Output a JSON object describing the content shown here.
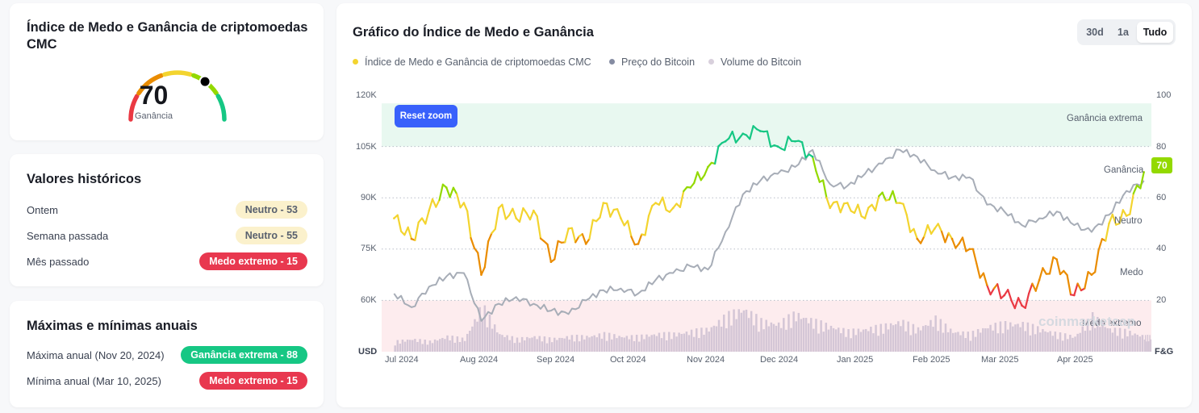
{
  "gauge": {
    "title": "Índice de Medo e Ganância de criptomoedas CMC",
    "value": "70",
    "value_num": 70,
    "label": "Ganância"
  },
  "history": {
    "title": "Valores históricos",
    "rows": [
      {
        "label": "Ontem",
        "badge": "Neutro - 53",
        "kind": "neutral"
      },
      {
        "label": "Semana passada",
        "badge": "Neutro - 55",
        "kind": "neutral"
      },
      {
        "label": "Mês passado",
        "badge": "Medo extremo - 15",
        "kind": "red"
      }
    ]
  },
  "annual": {
    "title": "Máximas e mínimas anuais",
    "rows": [
      {
        "label": "Máxima anual (Nov 20, 2024)",
        "badge": "Ganância extrema - 88",
        "kind": "green"
      },
      {
        "label": "Mínima anual (Mar 10, 2025)",
        "badge": "Medo extremo - 15",
        "kind": "red"
      }
    ]
  },
  "chart": {
    "title": "Gráfico do Índice de Medo e Ganância",
    "ranges": [
      "30d",
      "1a",
      "Tudo"
    ],
    "active_range": "Tudo",
    "reset_label": "Reset zoom",
    "watermark": "coinmarketcap",
    "badge_value": "70"
  },
  "colors": {
    "extreme_fear": "#ea3943",
    "fear": "#ea8c00",
    "neutral": "#f3d42f",
    "greed": "#93d900",
    "extreme_greed": "#16c784",
    "price_line": "#a7adb7",
    "volume": "#d4c6d6"
  },
  "chart_data": {
    "type": "line",
    "legend_position": "top-left",
    "grid": true,
    "series": [
      {
        "name": "Índice de Medo e Ganância de criptomoedas CMC",
        "axis": "right",
        "color": "#f3d42f"
      },
      {
        "name": "Preço do Bitcoin",
        "axis": "left",
        "color": "#858ca2"
      },
      {
        "name": "Volume do Bitcoin",
        "axis": "none",
        "color": "#d4c6d6"
      }
    ],
    "x_labels": [
      "Jul 2024",
      "Aug 2024",
      "Sep 2024",
      "Oct 2024",
      "Nov 2024",
      "Dec 2024",
      "Jan 2025",
      "Feb 2025",
      "Mar 2025",
      "Apr 2025"
    ],
    "left_axis": {
      "unit": "USD",
      "ticks": [
        "120K",
        "105K",
        "90K",
        "75K",
        "60K"
      ],
      "range": [
        45000,
        120000
      ]
    },
    "right_axis": {
      "unit": "F&G",
      "ticks": [
        "100",
        "80",
        "60",
        "40",
        "20"
      ],
      "range": [
        0,
        100
      ]
    },
    "zones": [
      "Ganância extrema",
      "Ganância",
      "Neutro",
      "Medo",
      "Medo extremo"
    ],
    "dates": [
      "2024-06-30",
      "2024-07-07",
      "2024-07-14",
      "2024-07-21",
      "2024-07-28",
      "2024-08-04",
      "2024-08-11",
      "2024-08-18",
      "2024-08-25",
      "2024-09-01",
      "2024-09-08",
      "2024-09-15",
      "2024-09-22",
      "2024-09-29",
      "2024-10-06",
      "2024-10-13",
      "2024-10-20",
      "2024-10-27",
      "2024-11-03",
      "2024-11-10",
      "2024-11-17",
      "2024-11-24",
      "2024-12-01",
      "2024-12-08",
      "2024-12-15",
      "2024-12-22",
      "2024-12-29",
      "2025-01-05",
      "2025-01-12",
      "2025-01-19",
      "2025-01-26",
      "2025-02-02",
      "2025-02-09",
      "2025-02-16",
      "2025-02-23",
      "2025-03-02",
      "2025-03-09",
      "2025-03-16",
      "2025-03-23",
      "2025-03-30",
      "2025-04-06",
      "2025-04-13",
      "2025-04-20",
      "2025-04-27"
    ],
    "fear_greed": [
      52,
      44,
      55,
      64,
      58,
      30,
      56,
      52,
      55,
      35,
      48,
      42,
      58,
      52,
      42,
      58,
      56,
      64,
      72,
      82,
      85,
      86,
      80,
      82,
      76,
      56,
      58,
      52,
      62,
      58,
      44,
      48,
      44,
      40,
      26,
      22,
      18,
      28,
      36,
      22,
      30,
      50,
      53,
      70
    ],
    "btc_price": [
      62000,
      58000,
      64000,
      67000,
      68000,
      54000,
      59000,
      61000,
      59000,
      57000,
      56000,
      60000,
      63000,
      63500,
      62000,
      66000,
      68000,
      70000,
      69000,
      80000,
      91000,
      95000,
      97000,
      99000,
      104000,
      94000,
      93500,
      97000,
      100000,
      104000,
      102000,
      98000,
      96000,
      96000,
      88000,
      86000,
      82000,
      84000,
      86000,
      82000,
      80000,
      85000,
      92000,
      95000
    ],
    "btc_volume_relative": [
      0.2,
      0.25,
      0.2,
      0.3,
      0.25,
      0.9,
      0.35,
      0.25,
      0.3,
      0.25,
      0.3,
      0.3,
      0.35,
      0.3,
      0.3,
      0.35,
      0.35,
      0.4,
      0.45,
      0.7,
      0.85,
      0.6,
      0.55,
      0.75,
      0.6,
      0.5,
      0.4,
      0.45,
      0.5,
      0.6,
      0.45,
      0.65,
      0.4,
      0.35,
      0.5,
      0.55,
      0.55,
      0.45,
      0.35,
      0.3,
      0.7,
      0.45,
      0.4,
      0.3
    ]
  }
}
